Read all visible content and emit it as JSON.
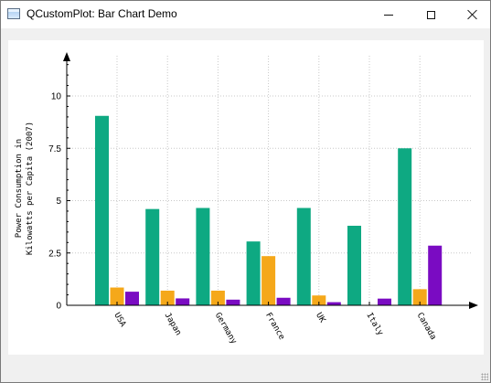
{
  "window": {
    "title": "QCustomPlot: Bar Chart Demo",
    "icon": "app-window-icon",
    "controls": [
      "minimize-icon",
      "maximize-icon",
      "close-icon"
    ]
  },
  "colors": {
    "series_1": "#0ea982",
    "series_2": "#f5a81a",
    "series_3": "#7a0bc2",
    "grid": "#c8c8c8",
    "panel": "#ffffff",
    "window_bg": "#f0f0f0"
  },
  "chart_data": {
    "type": "bar",
    "title": "",
    "xlabel": "",
    "ylabel_lines": [
      "Power Consumption in",
      "Kilowatts per Capita (2007)"
    ],
    "categories": [
      "USA",
      "Japan",
      "Germany",
      "France",
      "UK",
      "Italy",
      "Canada"
    ],
    "series": [
      {
        "values": [
          9.05,
          4.6,
          4.65,
          3.05,
          4.65,
          3.8,
          7.5
        ]
      },
      {
        "values": [
          0.85,
          0.7,
          0.7,
          2.35,
          0.47,
          0,
          0.77
        ]
      },
      {
        "values": [
          0.65,
          0.33,
          0.27,
          0.36,
          0.15,
          0.32,
          2.85
        ]
      }
    ],
    "yticks": [
      0,
      2.5,
      5,
      7.5,
      10
    ],
    "ytick_labels": [
      "0",
      "2.5",
      "5",
      "7.5",
      "10"
    ],
    "ylim": [
      0,
      12.1
    ],
    "grid": "dotted",
    "legend": "none"
  }
}
